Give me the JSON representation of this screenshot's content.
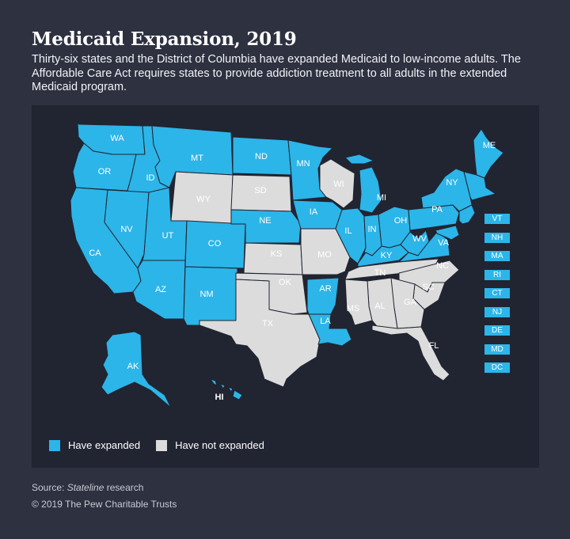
{
  "header": {
    "title": "Medicaid Expansion, 2019",
    "subtitle": "Thirty-six states and the District of Columbia have expanded Medicaid to low-income adults. The Affordable Care Act requires states to provide addiction treatment to all adults in the extended Medicaid program."
  },
  "colors": {
    "expanded": "#2cb5e8",
    "not_expanded": "#dcdcdc",
    "map_background": "#212431",
    "page_background": "#2d3140"
  },
  "legend": {
    "expanded_label": "Have expanded",
    "not_expanded_label": "Have not expanded"
  },
  "states": {
    "WA": "expanded",
    "OR": "expanded",
    "CA": "expanded",
    "ID": "expanded",
    "NV": "expanded",
    "MT": "expanded",
    "UT": "expanded",
    "AZ": "expanded",
    "CO": "expanded",
    "NM": "expanded",
    "ND": "expanded",
    "NE": "expanded",
    "MN": "expanded",
    "IA": "expanded",
    "AR": "expanded",
    "LA": "expanded",
    "IL": "expanded",
    "MI": "expanded",
    "IN": "expanded",
    "OH": "expanded",
    "KY": "expanded",
    "WV": "expanded",
    "VA": "expanded",
    "PA": "expanded",
    "NY": "expanded",
    "ME": "expanded",
    "AK": "expanded",
    "HI": "expanded",
    "WY": "not_expanded",
    "SD": "not_expanded",
    "KS": "not_expanded",
    "OK": "not_expanded",
    "TX": "not_expanded",
    "MO": "not_expanded",
    "WI": "not_expanded",
    "TN": "not_expanded",
    "MS": "not_expanded",
    "AL": "not_expanded",
    "GA": "not_expanded",
    "SC": "not_expanded",
    "NC": "not_expanded",
    "FL": "not_expanded"
  },
  "small_states": [
    "VT",
    "NH",
    "MA",
    "RI",
    "CT",
    "NJ",
    "DE",
    "MD",
    "DC"
  ],
  "footer": {
    "source_prefix": "Source: ",
    "source_italic": "Stateline",
    "source_suffix": " research",
    "copyright": "© 2019 The Pew Charitable Trusts"
  }
}
